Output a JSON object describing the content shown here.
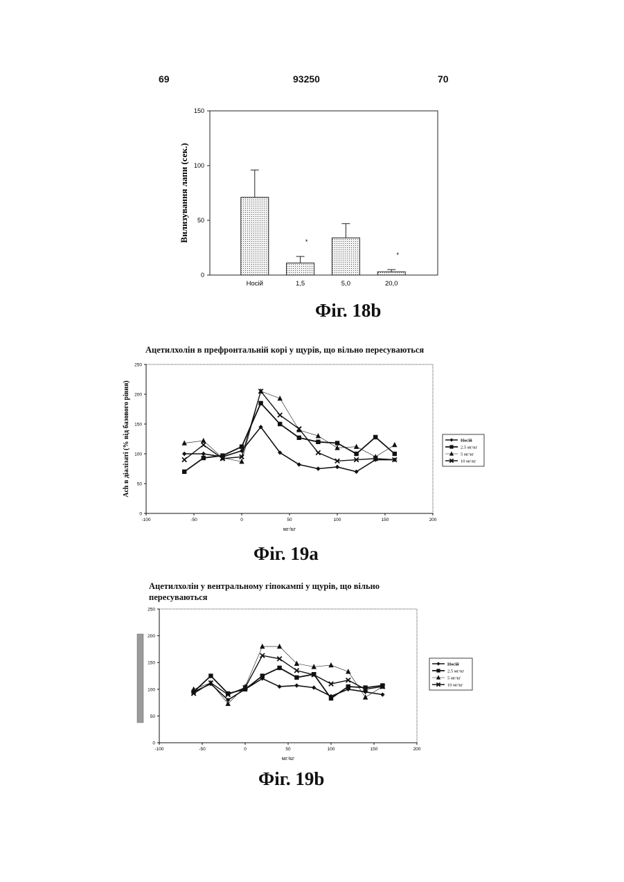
{
  "header": {
    "page_left": "69",
    "patent_number": "93250",
    "page_right": "70"
  },
  "figures": {
    "fig18b_caption": "Фіг. 18b",
    "fig19a_caption": "Фіг. 19a",
    "fig19b_caption": "Фіг. 19b"
  },
  "chart_data": [
    {
      "id": "fig18b",
      "type": "bar",
      "title": "",
      "ylabel": "Вилизування лапи (сек.)",
      "xlabel": "",
      "ylim": [
        0,
        150
      ],
      "yticks": [
        "0",
        "50",
        "100",
        "150"
      ],
      "categories": [
        "Носій",
        "1,5",
        "5,0",
        "20,0"
      ],
      "values": [
        71,
        11,
        34,
        3
      ],
      "errors": [
        25,
        6,
        13,
        2
      ],
      "significance": [
        "",
        "*",
        "",
        "*"
      ]
    },
    {
      "id": "fig19a",
      "type": "line",
      "title": "Ацетилхолін в префронтальній корі у щурів, що вільно пересуваються",
      "ylabel": "Ach в діалізаті (% від базового рівня)",
      "xlabel": "мг/кг",
      "xlim": [
        -100,
        200
      ],
      "ylim": [
        0,
        250
      ],
      "xticks": [
        "-100",
        "-50",
        "0",
        "50",
        "100",
        "150",
        "200"
      ],
      "yticks": [
        "0",
        "50",
        "100",
        "150",
        "200",
        "250"
      ],
      "x": [
        -60,
        -40,
        -20,
        0,
        20,
        40,
        60,
        80,
        100,
        120,
        140,
        160
      ],
      "legend_position": "right",
      "series": [
        {
          "name": "Носій",
          "marker": "diamond",
          "values": [
            100,
            100,
            95,
            105,
            145,
            102,
            82,
            75,
            78,
            70,
            90,
            90
          ]
        },
        {
          "name": "2.5 мг/кг",
          "marker": "square",
          "values": [
            70,
            93,
            97,
            112,
            185,
            150,
            127,
            120,
            118,
            100,
            128,
            100
          ]
        },
        {
          "name": "5 мг/кг",
          "marker": "triangle",
          "values": [
            118,
            122,
            93,
            87,
            205,
            193,
            140,
            130,
            110,
            112,
            95,
            115
          ]
        },
        {
          "name": "10 мг/кг",
          "marker": "x",
          "values": [
            90,
            115,
            92,
            95,
            205,
            165,
            142,
            102,
            88,
            90,
            92,
            90
          ]
        }
      ]
    },
    {
      "id": "fig19b",
      "type": "line",
      "title": "Ацетилхолін у вентральному гіпокампі у щурів, що вільно пересуваються",
      "ylabel": "",
      "xlabel": "мг/кг",
      "xlim": [
        -100,
        200
      ],
      "ylim": [
        0,
        250
      ],
      "xticks": [
        "-100",
        "-50",
        "0",
        "50",
        "100",
        "150",
        "200"
      ],
      "yticks": [
        "0",
        "50",
        "100",
        "150",
        "200",
        "250"
      ],
      "x": [
        -60,
        -40,
        -20,
        0,
        20,
        40,
        60,
        80,
        100,
        120,
        140,
        160
      ],
      "legend_position": "right",
      "series": [
        {
          "name": "Носій",
          "marker": "diamond",
          "values": [
            95,
            110,
            80,
            100,
            120,
            105,
            107,
            103,
            87,
            100,
            95,
            90
          ]
        },
        {
          "name": "2.5 мг/кг",
          "marker": "square",
          "values": [
            95,
            125,
            92,
            100,
            125,
            140,
            122,
            128,
            83,
            105,
            103,
            107
          ]
        },
        {
          "name": "5 мг/кг",
          "marker": "triangle",
          "values": [
            100,
            112,
            73,
            105,
            180,
            180,
            148,
            142,
            145,
            133,
            85,
            105
          ]
        },
        {
          "name": "10 мг/кг",
          "marker": "x",
          "values": [
            92,
            112,
            90,
            103,
            163,
            157,
            135,
            127,
            110,
            117,
            100,
            105
          ]
        }
      ]
    }
  ]
}
